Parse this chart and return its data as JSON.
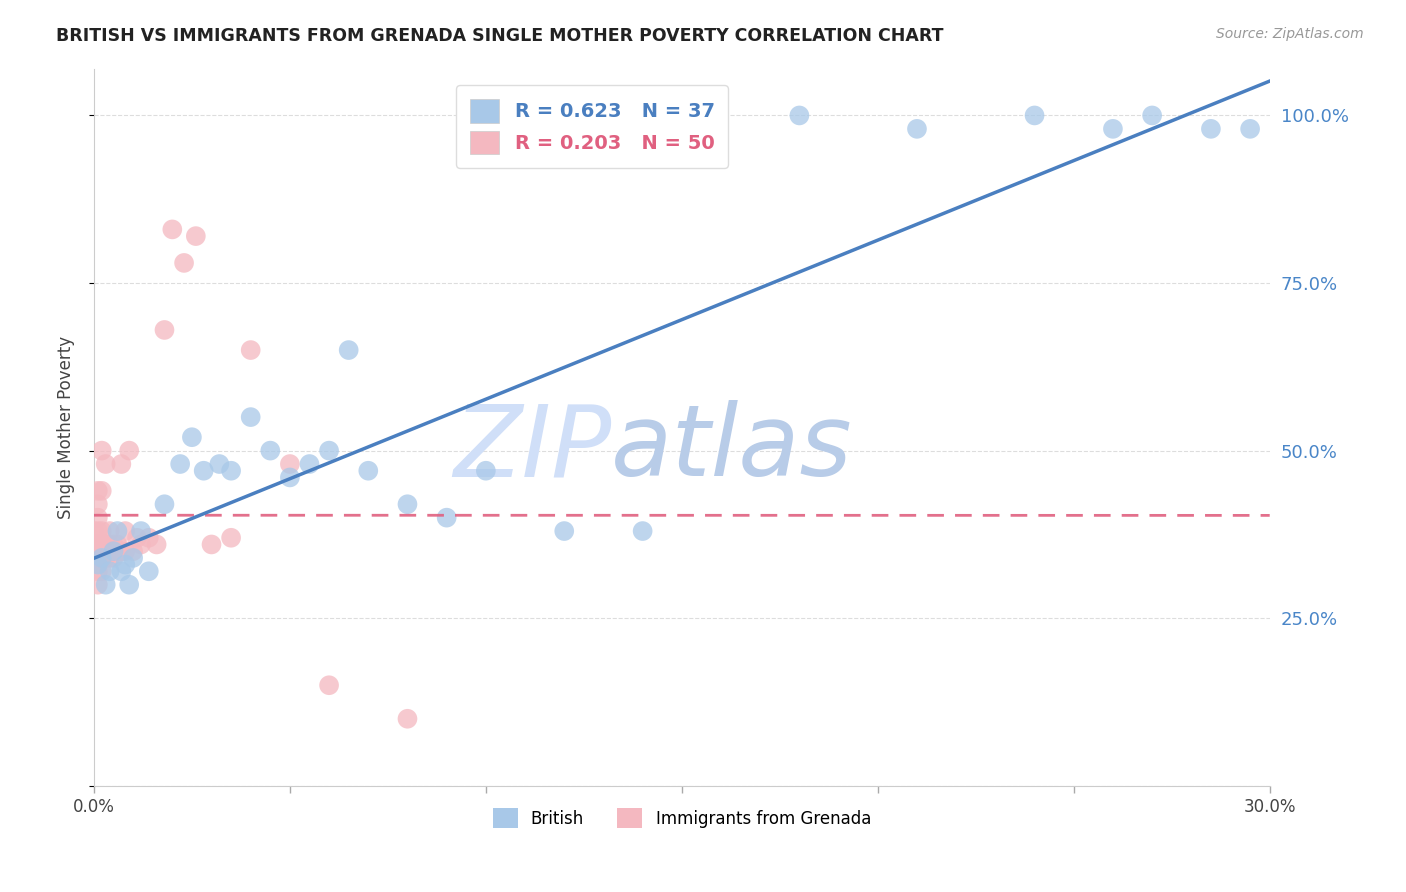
{
  "title": "BRITISH VS IMMIGRANTS FROM GRENADA SINGLE MOTHER POVERTY CORRELATION CHART",
  "source": "Source: ZipAtlas.com",
  "ylabel": "Single Mother Poverty",
  "y_ticks": [
    0.0,
    0.25,
    0.5,
    0.75,
    1.0
  ],
  "y_tick_labels": [
    "",
    "25.0%",
    "50.0%",
    "75.0%",
    "100.0%"
  ],
  "xlim": [
    0.0,
    0.3
  ],
  "ylim": [
    0.0,
    1.07
  ],
  "british_R": 0.623,
  "british_N": 37,
  "grenada_R": 0.203,
  "grenada_N": 50,
  "british_color": "#a8c8e8",
  "grenada_color": "#f4b8c0",
  "british_line_color": "#4a7fc0",
  "grenada_line_color": "#e06080",
  "grenada_line_dash": [
    6,
    4
  ],
  "watermark_zip": "ZIP",
  "watermark_atlas": "atlas",
  "watermark_color_zip": "#d0dff8",
  "watermark_color_atlas": "#b8cce8",
  "british_x": [
    0.001,
    0.002,
    0.003,
    0.004,
    0.005,
    0.006,
    0.007,
    0.008,
    0.009,
    0.01,
    0.012,
    0.014,
    0.018,
    0.022,
    0.025,
    0.028,
    0.032,
    0.035,
    0.04,
    0.045,
    0.05,
    0.055,
    0.06,
    0.065,
    0.07,
    0.08,
    0.09,
    0.1,
    0.12,
    0.14,
    0.18,
    0.21,
    0.24,
    0.26,
    0.27,
    0.285,
    0.295
  ],
  "british_y": [
    0.33,
    0.34,
    0.3,
    0.32,
    0.35,
    0.38,
    0.32,
    0.33,
    0.3,
    0.34,
    0.38,
    0.32,
    0.42,
    0.48,
    0.52,
    0.47,
    0.48,
    0.47,
    0.55,
    0.5,
    0.46,
    0.48,
    0.5,
    0.65,
    0.47,
    0.42,
    0.4,
    0.47,
    0.38,
    0.38,
    1.0,
    0.98,
    1.0,
    0.98,
    1.0,
    0.98,
    0.98
  ],
  "grenada_x": [
    0.0,
    0.0,
    0.0,
    0.001,
    0.001,
    0.001,
    0.001,
    0.001,
    0.001,
    0.001,
    0.001,
    0.001,
    0.002,
    0.002,
    0.002,
    0.002,
    0.002,
    0.002,
    0.002,
    0.003,
    0.003,
    0.003,
    0.003,
    0.004,
    0.004,
    0.004,
    0.005,
    0.005,
    0.006,
    0.006,
    0.007,
    0.007,
    0.008,
    0.008,
    0.009,
    0.01,
    0.011,
    0.012,
    0.014,
    0.016,
    0.018,
    0.02,
    0.023,
    0.026,
    0.03,
    0.035,
    0.04,
    0.05,
    0.06,
    0.08
  ],
  "grenada_y": [
    0.34,
    0.36,
    0.38,
    0.3,
    0.32,
    0.33,
    0.35,
    0.36,
    0.38,
    0.4,
    0.42,
    0.44,
    0.32,
    0.34,
    0.35,
    0.36,
    0.38,
    0.44,
    0.5,
    0.34,
    0.35,
    0.36,
    0.48,
    0.34,
    0.36,
    0.38,
    0.34,
    0.36,
    0.35,
    0.36,
    0.35,
    0.48,
    0.35,
    0.38,
    0.5,
    0.35,
    0.37,
    0.36,
    0.37,
    0.36,
    0.68,
    0.83,
    0.78,
    0.82,
    0.36,
    0.37,
    0.65,
    0.48,
    0.15,
    0.1
  ],
  "x_tick_positions": [
    0.0,
    0.05,
    0.1,
    0.15,
    0.2,
    0.25,
    0.3
  ],
  "x_tick_labels": [
    "0.0%",
    "",
    "",
    "",
    "",
    "",
    "30.0%"
  ]
}
